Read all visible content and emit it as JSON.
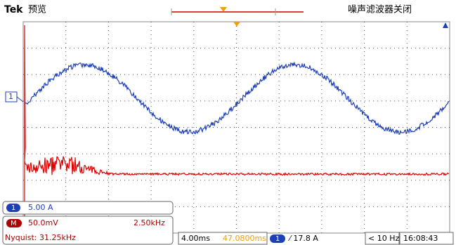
{
  "header": {
    "brand": "Tek",
    "mode": "预览",
    "status": "噪声滤波器关闭"
  },
  "channel_marker": "1",
  "channel1": {
    "badge": "1",
    "scale": "5.00 A"
  },
  "math": {
    "badge": "M",
    "scale": "50.0mV",
    "rate": "2.50kHz",
    "nyquist": "Nyquist: 31.25kHz"
  },
  "footer": {
    "timebase": "4.00ms",
    "position": "47.0800ms",
    "trigger_channel": "1",
    "trigger_level": "⁄ 17.8 A",
    "frequency": "< 10 Hz",
    "time": "16:08:43"
  }
}
